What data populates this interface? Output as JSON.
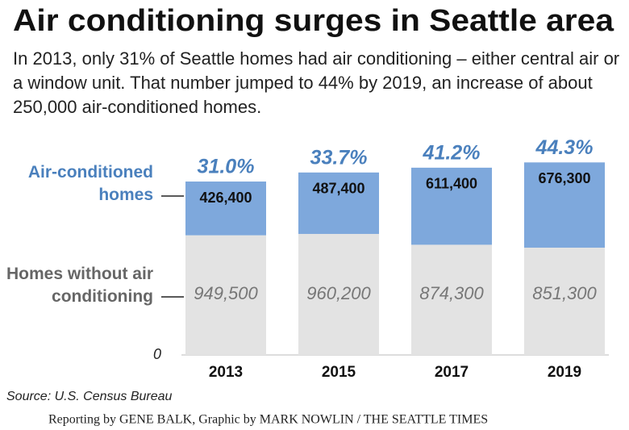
{
  "chart_data": {
    "type": "stacked-bar",
    "title": "Air conditioning surges in Seattle area",
    "subtitle": "In 2013, only 31% of Seattle homes had air conditioning – either central air or a window unit. That number jumped to 44% by 2019, an increase of about 250,000 air-conditioned homes.",
    "categories": [
      "2013",
      "2015",
      "2017",
      "2019"
    ],
    "series": [
      {
        "name": "Homes without air conditioning",
        "color": "#e3e3e3",
        "label_color": "#666666",
        "values": [
          949500,
          960200,
          874300,
          851300
        ],
        "value_labels": [
          "949,500",
          "960,200",
          "874,300",
          "851,300"
        ]
      },
      {
        "name": "Air-conditioned homes",
        "color": "#7ea8dc",
        "label_color": "#4a80bd",
        "values": [
          426400,
          487400,
          611400,
          676300
        ],
        "value_labels": [
          "426,400",
          "487,400",
          "611,400",
          "676,300"
        ]
      }
    ],
    "shares": {
      "values": [
        31.0,
        33.7,
        41.2,
        44.3
      ],
      "value_labels": [
        "31.0%",
        "33.7%",
        "41.2%",
        "44.3%"
      ]
    },
    "ylim": [
      0,
      1600000
    ],
    "yticks": [
      0
    ],
    "source": "Source: U.S. Census Bureau",
    "credit": "Reporting by GENE BALK, Graphic by MARK NOWLIN / THE SEATTLE TIMES"
  }
}
